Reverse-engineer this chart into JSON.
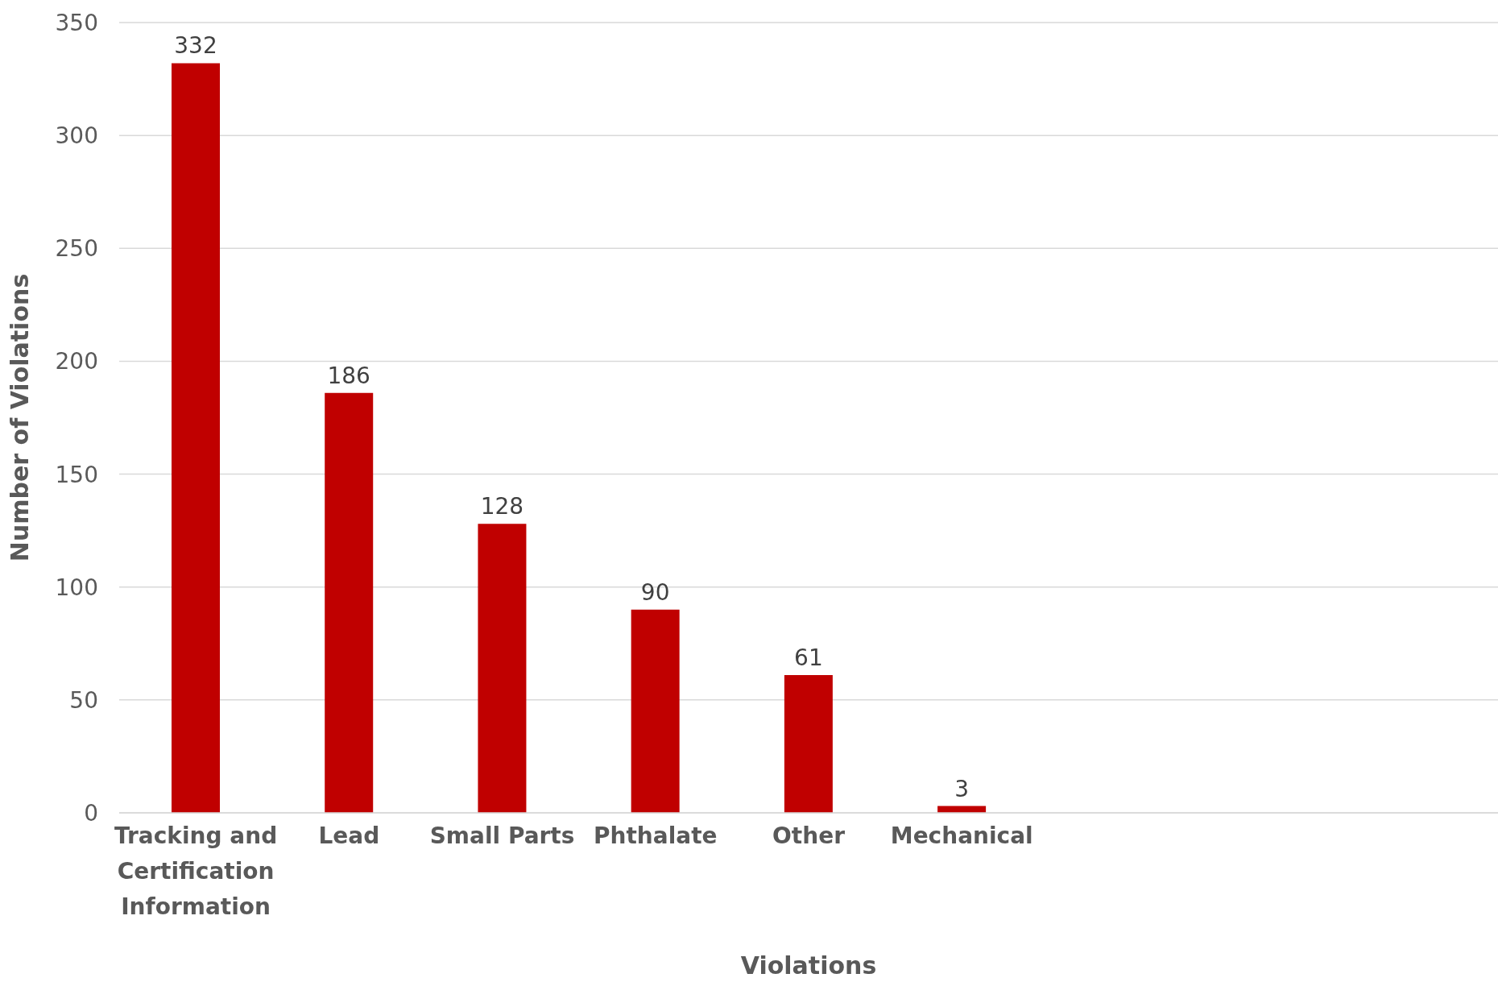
{
  "chart_data": {
    "type": "bar",
    "xlabel": "Violations",
    "ylabel": "Number of Violations",
    "categories": [
      "Tracking and Certification Information",
      "Lead",
      "Small Parts",
      "Phthalate",
      "Other",
      "Mechanical",
      null,
      null,
      null
    ],
    "values": [
      332,
      186,
      128,
      90,
      61,
      3,
      null,
      null,
      null
    ],
    "color": "#c00000",
    "ylim": [
      0,
      350
    ],
    "yticks": [
      0,
      50,
      100,
      150,
      200,
      250,
      300,
      350
    ],
    "grid": "y",
    "data_labels": true,
    "legend": false
  }
}
